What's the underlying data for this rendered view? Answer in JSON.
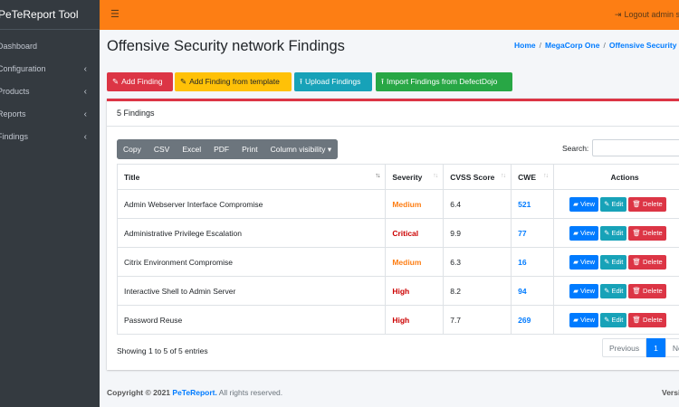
{
  "sidebar": {
    "brand": "PeTeReport Tool",
    "items": [
      {
        "label": "Dashboard",
        "has_children": false
      },
      {
        "label": "Configuration",
        "has_children": true
      },
      {
        "label": "Products",
        "has_children": true
      },
      {
        "label": "Reports",
        "has_children": true
      },
      {
        "label": "Findings",
        "has_children": true
      }
    ]
  },
  "topbar": {
    "logout_label": "Logout admin se"
  },
  "header": {
    "title": "Offensive Security network Findings",
    "breadcrumb": [
      "Home",
      "MegaCorp One",
      "Offensive Security n"
    ]
  },
  "actions": {
    "add_finding": "Add Finding",
    "add_from_template": "Add Finding from template",
    "upload_findings": "Upload Findings",
    "import_defectdojo": "Import Findings from DefectDojo"
  },
  "card": {
    "title": "5 Findings",
    "export_buttons": [
      "Copy",
      "CSV",
      "Excel",
      "PDF",
      "Print",
      "Column visibility"
    ],
    "search_label": "Search:",
    "search_value": "",
    "columns": [
      "Title",
      "Severity",
      "CVSS Score",
      "CWE",
      "Actions"
    ],
    "rows": [
      {
        "title": "Admin Webserver Interface Compromise",
        "severity": "Medium",
        "cvss": "6.4",
        "cwe": "521"
      },
      {
        "title": "Administrative Privilege Escalation",
        "severity": "Critical",
        "cvss": "9.9",
        "cwe": "77"
      },
      {
        "title": "Citrix Environment Compromise",
        "severity": "Medium",
        "cvss": "6.3",
        "cwe": "16"
      },
      {
        "title": "Interactive Shell to Admin Server",
        "severity": "High",
        "cvss": "8.2",
        "cwe": "94"
      },
      {
        "title": "Password Reuse",
        "severity": "High",
        "cvss": "7.7",
        "cwe": "269"
      }
    ],
    "row_actions": {
      "view": "View",
      "edit": "Edit",
      "delete": "Delete"
    },
    "showing": "Showing 1 to 5 of 5 entries",
    "pagination": {
      "previous": "Previous",
      "current": "1",
      "next": "Ne"
    }
  },
  "footer": {
    "copyright_prefix": "Copyright © 2021",
    "brand": "PeTeReport.",
    "suffix": "All rights reserved.",
    "version": "Versi"
  },
  "colors": {
    "topbar": "#fd7e14",
    "sidebar": "#343a40",
    "primary": "#007bff",
    "danger": "#dc3545",
    "warning": "#ffc107",
    "info": "#17a2b8",
    "success": "#28a745"
  }
}
